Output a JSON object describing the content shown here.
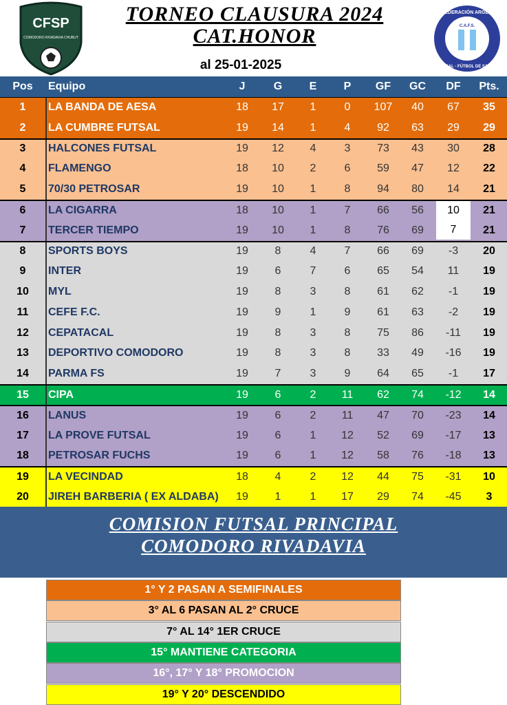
{
  "header": {
    "title": "TORNEO CLAUSURA 2024",
    "subtitle": "CAT.HONOR",
    "date": "al 25-01-2025",
    "left_logo": "CFSP",
    "left_logo_caption": "COMODORO RIVADAVIA CHUBUT",
    "right_logo_top": "CONFEDERACIÓN ARGENTINA",
    "right_logo_mid": "C.A.F.S.",
    "right_logo_bottom": "FUTSAL - FÚTBOL DE SALÓN"
  },
  "table": {
    "columns": [
      "Pos",
      "Equipo",
      "J",
      "G",
      "E",
      "P",
      "GF",
      "GC",
      "DF",
      "Pts."
    ],
    "rows": [
      [
        1,
        "LA BANDA DE AESA",
        18,
        17,
        1,
        0,
        107,
        40,
        67,
        35
      ],
      [
        2,
        "LA CUMBRE FUTSAL",
        19,
        14,
        1,
        4,
        92,
        63,
        29,
        29
      ],
      [
        3,
        "HALCONES FUTSAL",
        19,
        12,
        4,
        3,
        73,
        43,
        30,
        28
      ],
      [
        4,
        "FLAMENGO",
        18,
        10,
        2,
        6,
        59,
        47,
        12,
        22
      ],
      [
        5,
        "70/30 PETROSAR",
        19,
        10,
        1,
        8,
        94,
        80,
        14,
        21
      ],
      [
        6,
        "LA CIGARRA",
        18,
        10,
        1,
        7,
        66,
        56,
        10,
        21
      ],
      [
        7,
        "TERCER TIEMPO",
        19,
        10,
        1,
        8,
        76,
        69,
        7,
        21
      ],
      [
        8,
        "SPORTS BOYS",
        19,
        8,
        4,
        7,
        66,
        69,
        -3,
        20
      ],
      [
        9,
        "INTER",
        19,
        6,
        7,
        6,
        65,
        54,
        11,
        19
      ],
      [
        10,
        "MYL",
        19,
        8,
        3,
        8,
        61,
        62,
        -1,
        19
      ],
      [
        11,
        "CEFE F.C.",
        19,
        9,
        1,
        9,
        61,
        63,
        -2,
        19
      ],
      [
        12,
        "CEPATACAL",
        19,
        8,
        3,
        8,
        75,
        86,
        -11,
        19
      ],
      [
        13,
        "DEPORTIVO COMODORO",
        19,
        8,
        3,
        8,
        33,
        49,
        -16,
        19
      ],
      [
        14,
        "PARMA FS",
        19,
        7,
        3,
        9,
        64,
        65,
        -1,
        17
      ],
      [
        15,
        "CIPA",
        19,
        6,
        2,
        11,
        62,
        74,
        -12,
        14
      ],
      [
        16,
        "LANUS",
        19,
        6,
        2,
        11,
        47,
        70,
        -23,
        14
      ],
      [
        17,
        "LA PROVE FUTSAL",
        19,
        6,
        1,
        12,
        52,
        69,
        -17,
        13
      ],
      [
        18,
        "PETROSAR FUCHS",
        19,
        6,
        1,
        12,
        58,
        76,
        -18,
        13
      ],
      [
        19,
        "LA VECINDAD",
        18,
        4,
        2,
        12,
        44,
        75,
        -31,
        10
      ],
      [
        20,
        "JIREH BARBERIA ( EX ALDABA)",
        19,
        1,
        1,
        17,
        29,
        74,
        -45,
        3
      ]
    ]
  },
  "footer": {
    "line1": "COMISION FUTSAL PRINCIPAL",
    "line2": "COMODORO RIVADAVIA"
  },
  "legend": [
    {
      "text": "1° Y 2 PASAN A SEMIFINALES",
      "color": "#e46c0a"
    },
    {
      "text": "3° AL 6 PASAN AL 2° CRUCE",
      "color": "#fac090"
    },
    {
      "text": "7° AL 14° 1ER CRUCE",
      "color": "#d9d9d9"
    },
    {
      "text": "15° MANTIENE CATEGORIA",
      "color": "#00b050"
    },
    {
      "text": "16°, 17° Y 18° PROMOCION",
      "color": "#b1a0c7"
    },
    {
      "text": "19° Y 20° DESCENDIDO",
      "color": "#ffff00"
    }
  ]
}
